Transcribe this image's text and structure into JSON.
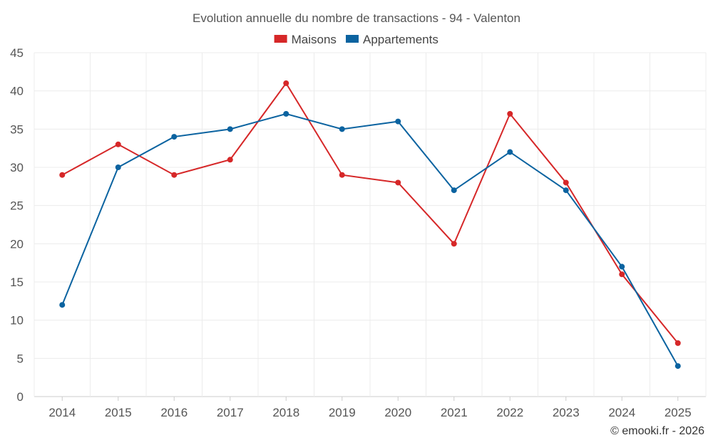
{
  "chart_data": {
    "type": "line",
    "title": "Evolution annuelle du nombre de transactions - 94 - Valenton",
    "categories": [
      "2014",
      "2015",
      "2016",
      "2017",
      "2018",
      "2019",
      "2020",
      "2021",
      "2022",
      "2023",
      "2024",
      "2025"
    ],
    "series": [
      {
        "name": "Maisons",
        "color": "#d62728",
        "values": [
          29,
          33,
          29,
          31,
          41,
          29,
          28,
          20,
          37,
          28,
          16,
          7
        ]
      },
      {
        "name": "Appartements",
        "color": "#0b63a0",
        "values": [
          12,
          30,
          34,
          35,
          37,
          35,
          36,
          27,
          32,
          27,
          17,
          4
        ]
      }
    ],
    "ylim": [
      0,
      45
    ],
    "yticks": [
      0,
      5,
      10,
      15,
      20,
      25,
      30,
      35,
      40,
      45
    ],
    "grid": true,
    "legend": "top-center",
    "xlabel": "",
    "ylabel": ""
  },
  "credit": "© emooki.fr - 2026"
}
